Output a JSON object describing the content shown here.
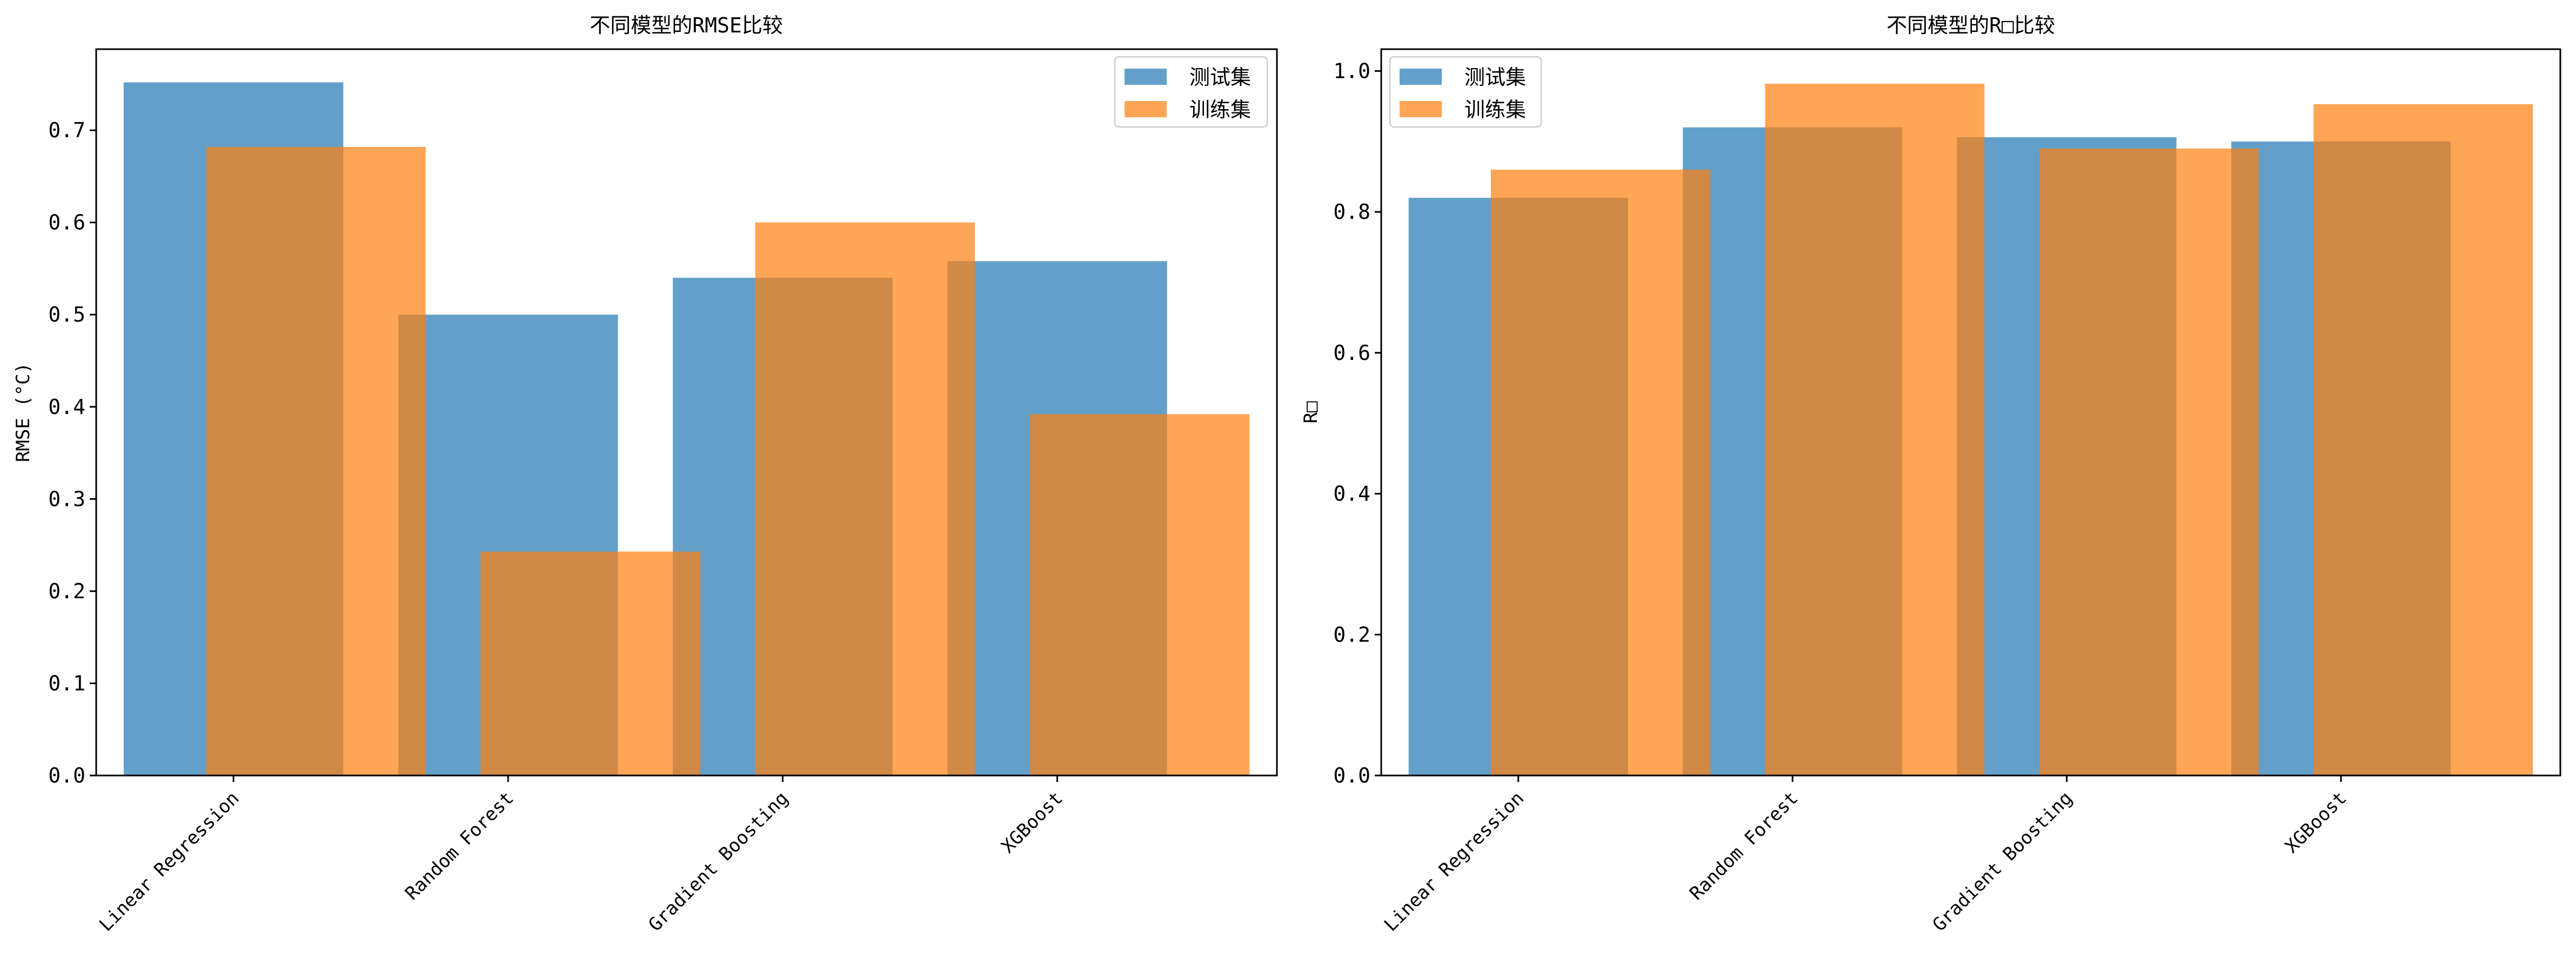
{
  "colors": {
    "test": "#1f77b4",
    "train": "#ff7f0e",
    "alpha": 0.7
  },
  "legend": {
    "test_label": "测试集",
    "train_label": "训练集"
  },
  "chart_data": [
    {
      "type": "bar",
      "title": "不同模型的RMSE比较",
      "xlabel": "",
      "ylabel": "RMSE (°C)",
      "categories": [
        "Linear Regression",
        "Random Forest",
        "Gradient Boosting",
        "XGBoost"
      ],
      "series": [
        {
          "name": "测试集",
          "values": [
            0.752,
            0.5,
            0.54,
            0.558
          ]
        },
        {
          "name": "训练集",
          "values": [
            0.682,
            0.243,
            0.6,
            0.392
          ]
        }
      ],
      "ylim": [
        0,
        0.788
      ],
      "yticks": [
        0.0,
        0.1,
        0.2,
        0.3,
        0.4,
        0.5,
        0.6,
        0.7
      ],
      "ytick_labels": [
        "0.0",
        "0.1",
        "0.2",
        "0.3",
        "0.4",
        "0.5",
        "0.6",
        "0.7"
      ],
      "legend_position": "top-right",
      "grid": false
    },
    {
      "type": "bar",
      "title": "不同模型的R□比较",
      "xlabel": "",
      "ylabel": "R□",
      "categories": [
        "Linear Regression",
        "Random Forest",
        "Gradient Boosting",
        "XGBoost"
      ],
      "series": [
        {
          "name": "测试集",
          "values": [
            0.82,
            0.92,
            0.906,
            0.9
          ]
        },
        {
          "name": "训练集",
          "values": [
            0.86,
            0.982,
            0.89,
            0.953
          ]
        }
      ],
      "ylim": [
        0,
        1.031
      ],
      "yticks": [
        0.0,
        0.2,
        0.4,
        0.6,
        0.8,
        1.0
      ],
      "ytick_labels": [
        "0.0",
        "0.2",
        "0.4",
        "0.6",
        "0.8",
        "1.0"
      ],
      "legend_position": "top-left",
      "grid": false
    }
  ]
}
